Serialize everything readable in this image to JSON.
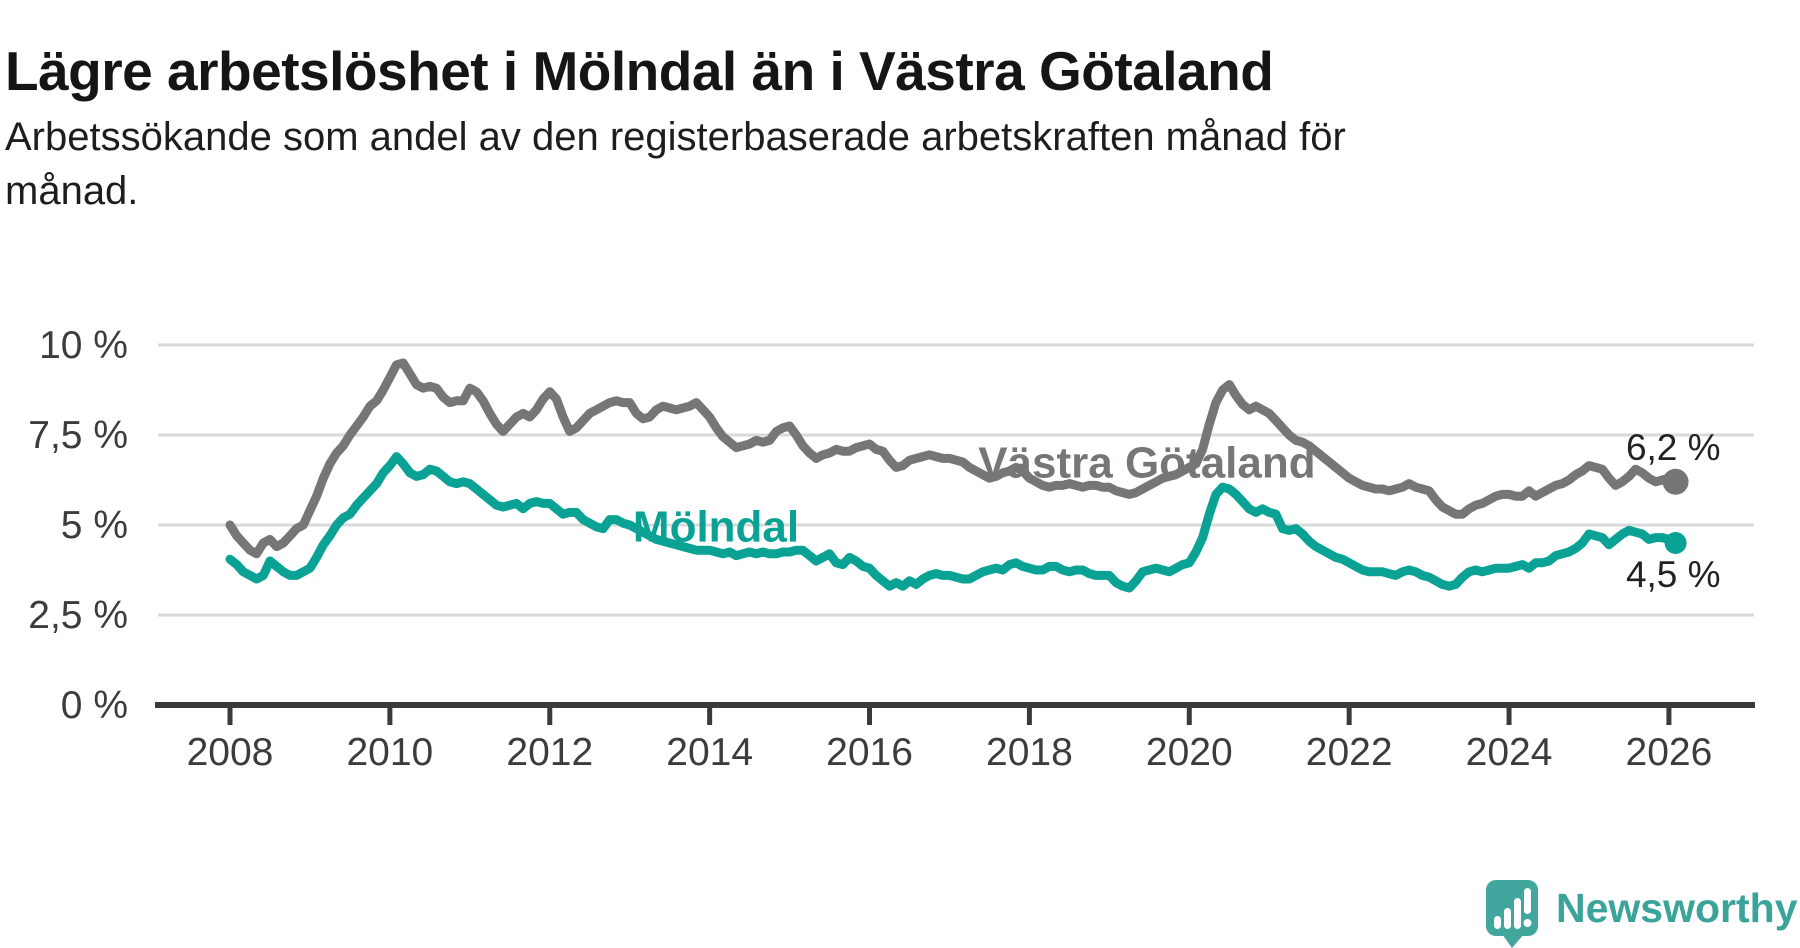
{
  "header": {
    "title": "Lägre arbetslöshet i Mölndal än i Västra Götaland",
    "subtitle_lines": [
      "Arbetssökande som andel av den registerbaserade arbetskraften månad för",
      "månad."
    ]
  },
  "chart_data": {
    "type": "line",
    "unit": "%",
    "grid": true,
    "ylim": [
      0,
      10
    ],
    "x_start_year": 2008,
    "x_step_months": 1,
    "x_ticks": [
      {
        "year": 2008,
        "label": "2008"
      },
      {
        "year": 2010,
        "label": "2010"
      },
      {
        "year": 2012,
        "label": "2012"
      },
      {
        "year": 2014,
        "label": "2014"
      },
      {
        "year": 2016,
        "label": "2016"
      },
      {
        "year": 2018,
        "label": "2018"
      },
      {
        "year": 2020,
        "label": "2020"
      },
      {
        "year": 2022,
        "label": "2022"
      },
      {
        "year": 2024,
        "label": "2024"
      },
      {
        "year": 2026,
        "label": "2026"
      }
    ],
    "y_ticks": [
      {
        "value": 0,
        "label": "0 %"
      },
      {
        "value": 2.5,
        "label": "2,5 %"
      },
      {
        "value": 5,
        "label": "5 %"
      },
      {
        "value": 7.5,
        "label": "7,5 %"
      },
      {
        "value": 10,
        "label": "10 %"
      }
    ],
    "series": [
      {
        "name": "Västra Götaland",
        "color": "#787579",
        "end_label": "6,2 %",
        "label_anchor": {
          "year": 2019.47,
          "value": 6.72
        },
        "end_label_offset": "above",
        "values": [
          5.0,
          4.7,
          4.5,
          4.3,
          4.2,
          4.5,
          4.6,
          4.4,
          4.5,
          4.7,
          4.9,
          5.0,
          5.4,
          5.8,
          6.3,
          6.7,
          7.0,
          7.2,
          7.5,
          7.75,
          8.0,
          8.3,
          8.45,
          8.75,
          9.1,
          9.45,
          9.5,
          9.2,
          8.9,
          8.8,
          8.85,
          8.8,
          8.55,
          8.4,
          8.45,
          8.45,
          8.8,
          8.7,
          8.45,
          8.1,
          7.8,
          7.6,
          7.8,
          8.0,
          8.1,
          8.0,
          8.2,
          8.5,
          8.7,
          8.5,
          8.0,
          7.6,
          7.7,
          7.9,
          8.1,
          8.2,
          8.3,
          8.4,
          8.45,
          8.4,
          8.4,
          8.1,
          7.95,
          8.0,
          8.2,
          8.3,
          8.25,
          8.2,
          8.25,
          8.3,
          8.4,
          8.2,
          8.0,
          7.7,
          7.45,
          7.3,
          7.15,
          7.2,
          7.25,
          7.35,
          7.3,
          7.35,
          7.6,
          7.7,
          7.75,
          7.5,
          7.2,
          7.0,
          6.85,
          6.95,
          7.0,
          7.1,
          7.05,
          7.05,
          7.15,
          7.2,
          7.25,
          7.1,
          7.05,
          6.8,
          6.6,
          6.65,
          6.8,
          6.85,
          6.9,
          6.95,
          6.9,
          6.85,
          6.85,
          6.8,
          6.75,
          6.6,
          6.5,
          6.4,
          6.3,
          6.35,
          6.45,
          6.5,
          6.6,
          6.5,
          6.3,
          6.2,
          6.1,
          6.05,
          6.1,
          6.1,
          6.15,
          6.1,
          6.05,
          6.1,
          6.1,
          6.05,
          6.05,
          5.95,
          5.9,
          5.85,
          5.9,
          6.0,
          6.1,
          6.2,
          6.3,
          6.35,
          6.4,
          6.5,
          6.6,
          6.7,
          7.1,
          7.8,
          8.4,
          8.75,
          8.9,
          8.6,
          8.35,
          8.2,
          8.3,
          8.2,
          8.1,
          7.9,
          7.7,
          7.5,
          7.35,
          7.3,
          7.2,
          7.05,
          6.9,
          6.75,
          6.6,
          6.45,
          6.3,
          6.2,
          6.1,
          6.05,
          6.0,
          6.0,
          5.95,
          6.0,
          6.05,
          6.15,
          6.05,
          6.0,
          5.95,
          5.7,
          5.5,
          5.4,
          5.3,
          5.3,
          5.45,
          5.55,
          5.6,
          5.7,
          5.8,
          5.85,
          5.85,
          5.8,
          5.8,
          5.95,
          5.8,
          5.9,
          6.0,
          6.1,
          6.15,
          6.25,
          6.4,
          6.5,
          6.65,
          6.6,
          6.55,
          6.3,
          6.1,
          6.2,
          6.35,
          6.55,
          6.45,
          6.3,
          6.2,
          6.25,
          6.3,
          6.2
        ]
      },
      {
        "name": "Mölndal",
        "color": "#0aa294",
        "end_label": "4,5 %",
        "label_anchor": {
          "year": 2014.08,
          "value": 4.94
        },
        "end_label_offset": "below",
        "values": [
          4.05,
          3.9,
          3.7,
          3.6,
          3.5,
          3.6,
          4.0,
          3.85,
          3.7,
          3.6,
          3.6,
          3.7,
          3.8,
          4.1,
          4.45,
          4.7,
          5.0,
          5.2,
          5.3,
          5.55,
          5.75,
          5.95,
          6.15,
          6.45,
          6.65,
          6.9,
          6.7,
          6.45,
          6.35,
          6.4,
          6.55,
          6.5,
          6.35,
          6.2,
          6.15,
          6.2,
          6.15,
          6.0,
          5.85,
          5.7,
          5.55,
          5.5,
          5.55,
          5.6,
          5.45,
          5.6,
          5.65,
          5.6,
          5.6,
          5.45,
          5.3,
          5.35,
          5.35,
          5.15,
          5.05,
          4.95,
          4.9,
          5.15,
          5.15,
          5.05,
          5.0,
          4.9,
          4.8,
          4.7,
          4.6,
          4.55,
          4.5,
          4.45,
          4.4,
          4.35,
          4.3,
          4.3,
          4.3,
          4.25,
          4.2,
          4.25,
          4.15,
          4.2,
          4.25,
          4.2,
          4.25,
          4.2,
          4.2,
          4.25,
          4.25,
          4.3,
          4.3,
          4.15,
          4.0,
          4.1,
          4.2,
          3.95,
          3.9,
          4.1,
          4.0,
          3.85,
          3.8,
          3.6,
          3.45,
          3.3,
          3.4,
          3.3,
          3.45,
          3.35,
          3.5,
          3.6,
          3.65,
          3.6,
          3.6,
          3.55,
          3.5,
          3.5,
          3.6,
          3.7,
          3.75,
          3.8,
          3.75,
          3.9,
          3.95,
          3.85,
          3.8,
          3.75,
          3.75,
          3.85,
          3.85,
          3.75,
          3.7,
          3.75,
          3.75,
          3.65,
          3.6,
          3.6,
          3.6,
          3.4,
          3.3,
          3.25,
          3.45,
          3.7,
          3.75,
          3.8,
          3.75,
          3.7,
          3.8,
          3.9,
          3.95,
          4.25,
          4.65,
          5.3,
          5.85,
          6.05,
          6.0,
          5.85,
          5.65,
          5.45,
          5.35,
          5.45,
          5.35,
          5.3,
          4.9,
          4.85,
          4.9,
          4.75,
          4.55,
          4.4,
          4.3,
          4.2,
          4.1,
          4.05,
          3.95,
          3.85,
          3.75,
          3.7,
          3.7,
          3.7,
          3.65,
          3.6,
          3.7,
          3.75,
          3.7,
          3.6,
          3.55,
          3.45,
          3.35,
          3.3,
          3.35,
          3.55,
          3.7,
          3.75,
          3.7,
          3.75,
          3.8,
          3.8,
          3.8,
          3.85,
          3.9,
          3.8,
          3.95,
          3.95,
          4.0,
          4.15,
          4.2,
          4.25,
          4.35,
          4.5,
          4.75,
          4.7,
          4.65,
          4.45,
          4.6,
          4.75,
          4.85,
          4.8,
          4.75,
          4.6,
          4.65,
          4.65,
          4.6,
          4.5
        ]
      }
    ],
    "colors": {
      "gridline": "#d9d9d9",
      "axis": "#3a3a3a",
      "tick_label": "#3c3c3c",
      "end_label": "#222222"
    }
  },
  "branding": {
    "name": "Newsworthy",
    "icon_color": "#41a69e",
    "text_color": "#3aa39a"
  }
}
